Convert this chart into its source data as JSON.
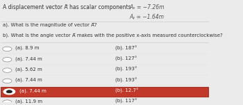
{
  "title": "A displacement vector A⃗ has scalar components",
  "component_x": "Aₓ = −7.26m",
  "component_y": "Aᵧ = −1.64m",
  "question_a": "a). What is the magnitude of vector A⃗?",
  "question_b": "b). What is the angle vector A⃗ makes with the positive x-axis measured counterclockwise?",
  "options": [
    {
      "a": "(a). 8.9 m",
      "b": "(b). 187°"
    },
    {
      "a": "(a). 7.44 m",
      "b": "(b). 127°"
    },
    {
      "a": "(a). 5.62 m",
      "b": "(b). 193°"
    },
    {
      "a": "(a). 7.44 m",
      "b": "(b). 193°"
    },
    {
      "a": "(a). 7.44 m",
      "b": "(b). 12.7°",
      "selected": true
    },
    {
      "a": "(a). 11.9 m",
      "b": "(b). 117°"
    }
  ],
  "bg_color": "#ebebeb",
  "selected_bg": "#c0392b",
  "line_color": "#cccccc"
}
